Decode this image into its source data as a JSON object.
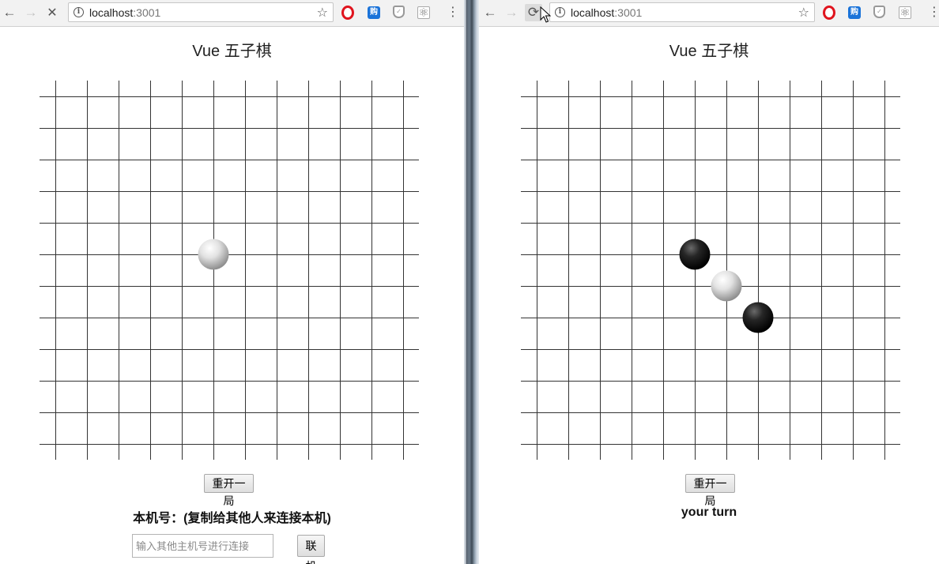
{
  "left": {
    "url_host": "localhost",
    "url_port": ":3001",
    "title": "Vue 五子棋",
    "restart_label": "重开一局",
    "machine_label": "本机号：(复制给其他人来连接本机)",
    "connect_placeholder": "输入其他主机号进行连接",
    "connect_label": "联机",
    "board": {
      "columns": 12,
      "rows": 12,
      "stones": [
        {
          "col": 5,
          "row": 5,
          "color": "white"
        }
      ]
    }
  },
  "right": {
    "url_host": "localhost",
    "url_port": ":3001",
    "title": "Vue 五子棋",
    "restart_label": "重开一局",
    "status": "your turn",
    "board": {
      "columns": 12,
      "rows": 12,
      "stones": [
        {
          "col": 5,
          "row": 5,
          "color": "black"
        },
        {
          "col": 6,
          "row": 6,
          "color": "white"
        },
        {
          "col": 7,
          "row": 7,
          "color": "black"
        }
      ]
    }
  },
  "colors": {
    "grid_line": "#333333",
    "toolbar_bg": "#f2f2f2",
    "opera": "#e0141e",
    "gou": "#1a73d9"
  },
  "icons": [
    "back-icon",
    "forward-icon",
    "stop-icon",
    "reload-icon",
    "info-icon",
    "star-icon",
    "opera-icon",
    "gou-icon",
    "shield-icon",
    "react-devtools-icon",
    "menu-icon"
  ]
}
